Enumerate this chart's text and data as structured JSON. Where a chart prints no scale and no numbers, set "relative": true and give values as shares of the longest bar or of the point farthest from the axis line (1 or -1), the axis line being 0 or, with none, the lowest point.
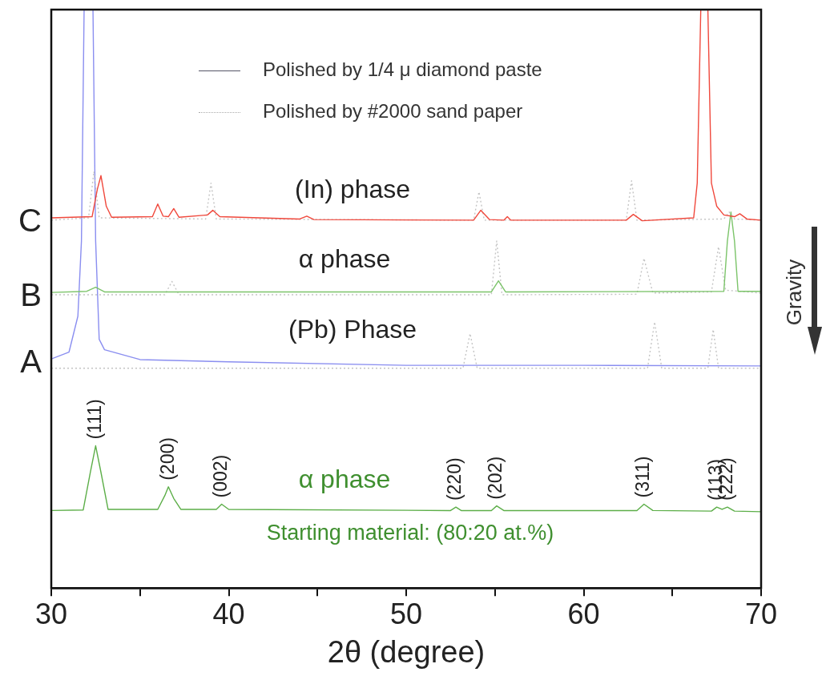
{
  "chart_data": {
    "type": "line",
    "relative": true,
    "xlabel": "2θ (degree)",
    "xlim": [
      30,
      70
    ],
    "xticks": [
      30,
      {
        "value": 35,
        "label": null
      },
      40,
      {
        "value": 45,
        "label": null
      },
      50,
      {
        "value": 55,
        "label": null
      },
      60,
      {
        "value": 65,
        "label": null
      },
      70
    ],
    "marker": "none",
    "series": [
      {
        "name": "C",
        "color": "#f0483c",
        "x": [
          30,
          32.3,
          32.6,
          32.8,
          33.1,
          33.4,
          35.7,
          36,
          36.3,
          36.6,
          36.9,
          37.2,
          38.8,
          39.1,
          39.5,
          44,
          44.4,
          44.8,
          53.8,
          54.2,
          54.7,
          55.5,
          55.7,
          55.9,
          62.4,
          62.8,
          63.3,
          66.2,
          66.4,
          66.6,
          67,
          67.2,
          67.5,
          67.9,
          68.5,
          68.8,
          69.2,
          70
        ],
        "values": [
          0.64,
          0.642,
          0.69,
          0.713,
          0.66,
          0.641,
          0.642,
          0.664,
          0.643,
          0.642,
          0.656,
          0.641,
          0.645,
          0.653,
          0.642,
          0.638,
          0.643,
          0.637,
          0.636,
          0.653,
          0.637,
          0.636,
          0.642,
          0.636,
          0.636,
          0.646,
          0.635,
          0.64,
          0.7,
          1,
          1,
          0.7,
          0.66,
          0.645,
          0.642,
          0.647,
          0.638,
          0.636
        ]
      },
      {
        "color": "#c4c4c4",
        "line_style": "dotted",
        "x": [
          30,
          32.1,
          32.4,
          32.7,
          38.7,
          39,
          39.3,
          53.8,
          54.1,
          54.4,
          62.4,
          62.7,
          63,
          67.9,
          68.2,
          68.5,
          70
        ],
        "values": [
          0.636,
          0.64,
          0.72,
          0.64,
          0.638,
          0.7,
          0.638,
          0.636,
          0.685,
          0.636,
          0.636,
          0.704,
          0.636,
          0.638,
          0.65,
          0.638,
          0.636
        ]
      },
      {
        "name": "B",
        "color": "#7cc46a",
        "x": [
          30,
          32,
          32.5,
          33,
          54.8,
          55.2,
          55.6,
          67.9,
          68.1,
          68.3,
          68.5,
          68.7,
          70
        ],
        "values": [
          0.511,
          0.513,
          0.52,
          0.512,
          0.512,
          0.531,
          0.512,
          0.513,
          0.6,
          0.65,
          0.6,
          0.513,
          0.513
        ]
      },
      {
        "color": "#c4c4c4",
        "line_style": "dotted",
        "x": [
          30,
          36.4,
          36.8,
          37.2,
          54.8,
          55.1,
          55.4,
          63,
          63.4,
          63.9,
          67.2,
          67.6,
          68,
          70
        ],
        "values": [
          0.507,
          0.507,
          0.53,
          0.507,
          0.507,
          0.6,
          0.507,
          0.508,
          0.57,
          0.51,
          0.512,
          0.59,
          0.515,
          0.51
        ]
      },
      {
        "name": "A",
        "color": "#8a8ef0",
        "x": [
          30,
          31,
          31.5,
          31.7,
          31.85,
          32.35,
          32.5,
          32.7,
          33,
          35,
          40,
          50,
          60,
          70
        ],
        "values": [
          0.396,
          0.408,
          0.47,
          0.6,
          1,
          1,
          0.6,
          0.43,
          0.412,
          0.395,
          0.391,
          0.385,
          0.385,
          0.384
        ]
      },
      {
        "color": "#c4c4c4",
        "line_style": "dotted",
        "x": [
          30,
          53.2,
          53.6,
          54,
          63.6,
          64,
          64.4,
          67,
          67.3,
          67.6,
          70
        ],
        "values": [
          0.38,
          0.38,
          0.44,
          0.38,
          0.38,
          0.46,
          0.38,
          0.38,
          0.447,
          0.38,
          0.38
        ]
      },
      {
        "color": "#5cae48",
        "x": [
          30,
          31.8,
          32.2,
          32.5,
          32.8,
          33.2,
          36,
          36.4,
          36.6,
          36.9,
          37.3,
          39.3,
          39.6,
          40,
          52.5,
          52.8,
          53.1,
          54.8,
          55.1,
          55.5,
          63,
          63.4,
          63.9,
          67.2,
          67.5,
          67.8,
          68.1,
          68.5,
          70
        ],
        "values": [
          0.134,
          0.135,
          0.2,
          0.246,
          0.2,
          0.136,
          0.136,
          0.16,
          0.175,
          0.155,
          0.136,
          0.136,
          0.145,
          0.136,
          0.134,
          0.14,
          0.134,
          0.134,
          0.142,
          0.134,
          0.134,
          0.145,
          0.134,
          0.133,
          0.14,
          0.136,
          0.14,
          0.133,
          0.132
        ]
      }
    ],
    "annotations": [
      "Polished by 1/4 μ diamond paste",
      "Polished by #2000 sand paper",
      "(In) phase",
      "α phase",
      "(Pb) Phase",
      "α phase",
      "Starting material: (80:20 at.%)",
      "Gravity",
      {
        "text": "(111)",
        "x": 32.5,
        "y": 0.246
      },
      {
        "text": "(200)",
        "x": 36.6,
        "y": 0.175
      },
      {
        "text": "(002)",
        "x": 39.6,
        "y": 0.145
      },
      {
        "text": "(220)",
        "x": 52.8,
        "y": 0.14
      },
      {
        "text": "(202)",
        "x": 55.1,
        "y": 0.142
      },
      {
        "text": "(311)",
        "x": 63.4,
        "y": 0.145
      },
      {
        "text": "(113)",
        "x": 67.5,
        "y": 0.14
      },
      {
        "text": "(222)",
        "x": 68.1,
        "y": 0.14
      }
    ]
  }
}
